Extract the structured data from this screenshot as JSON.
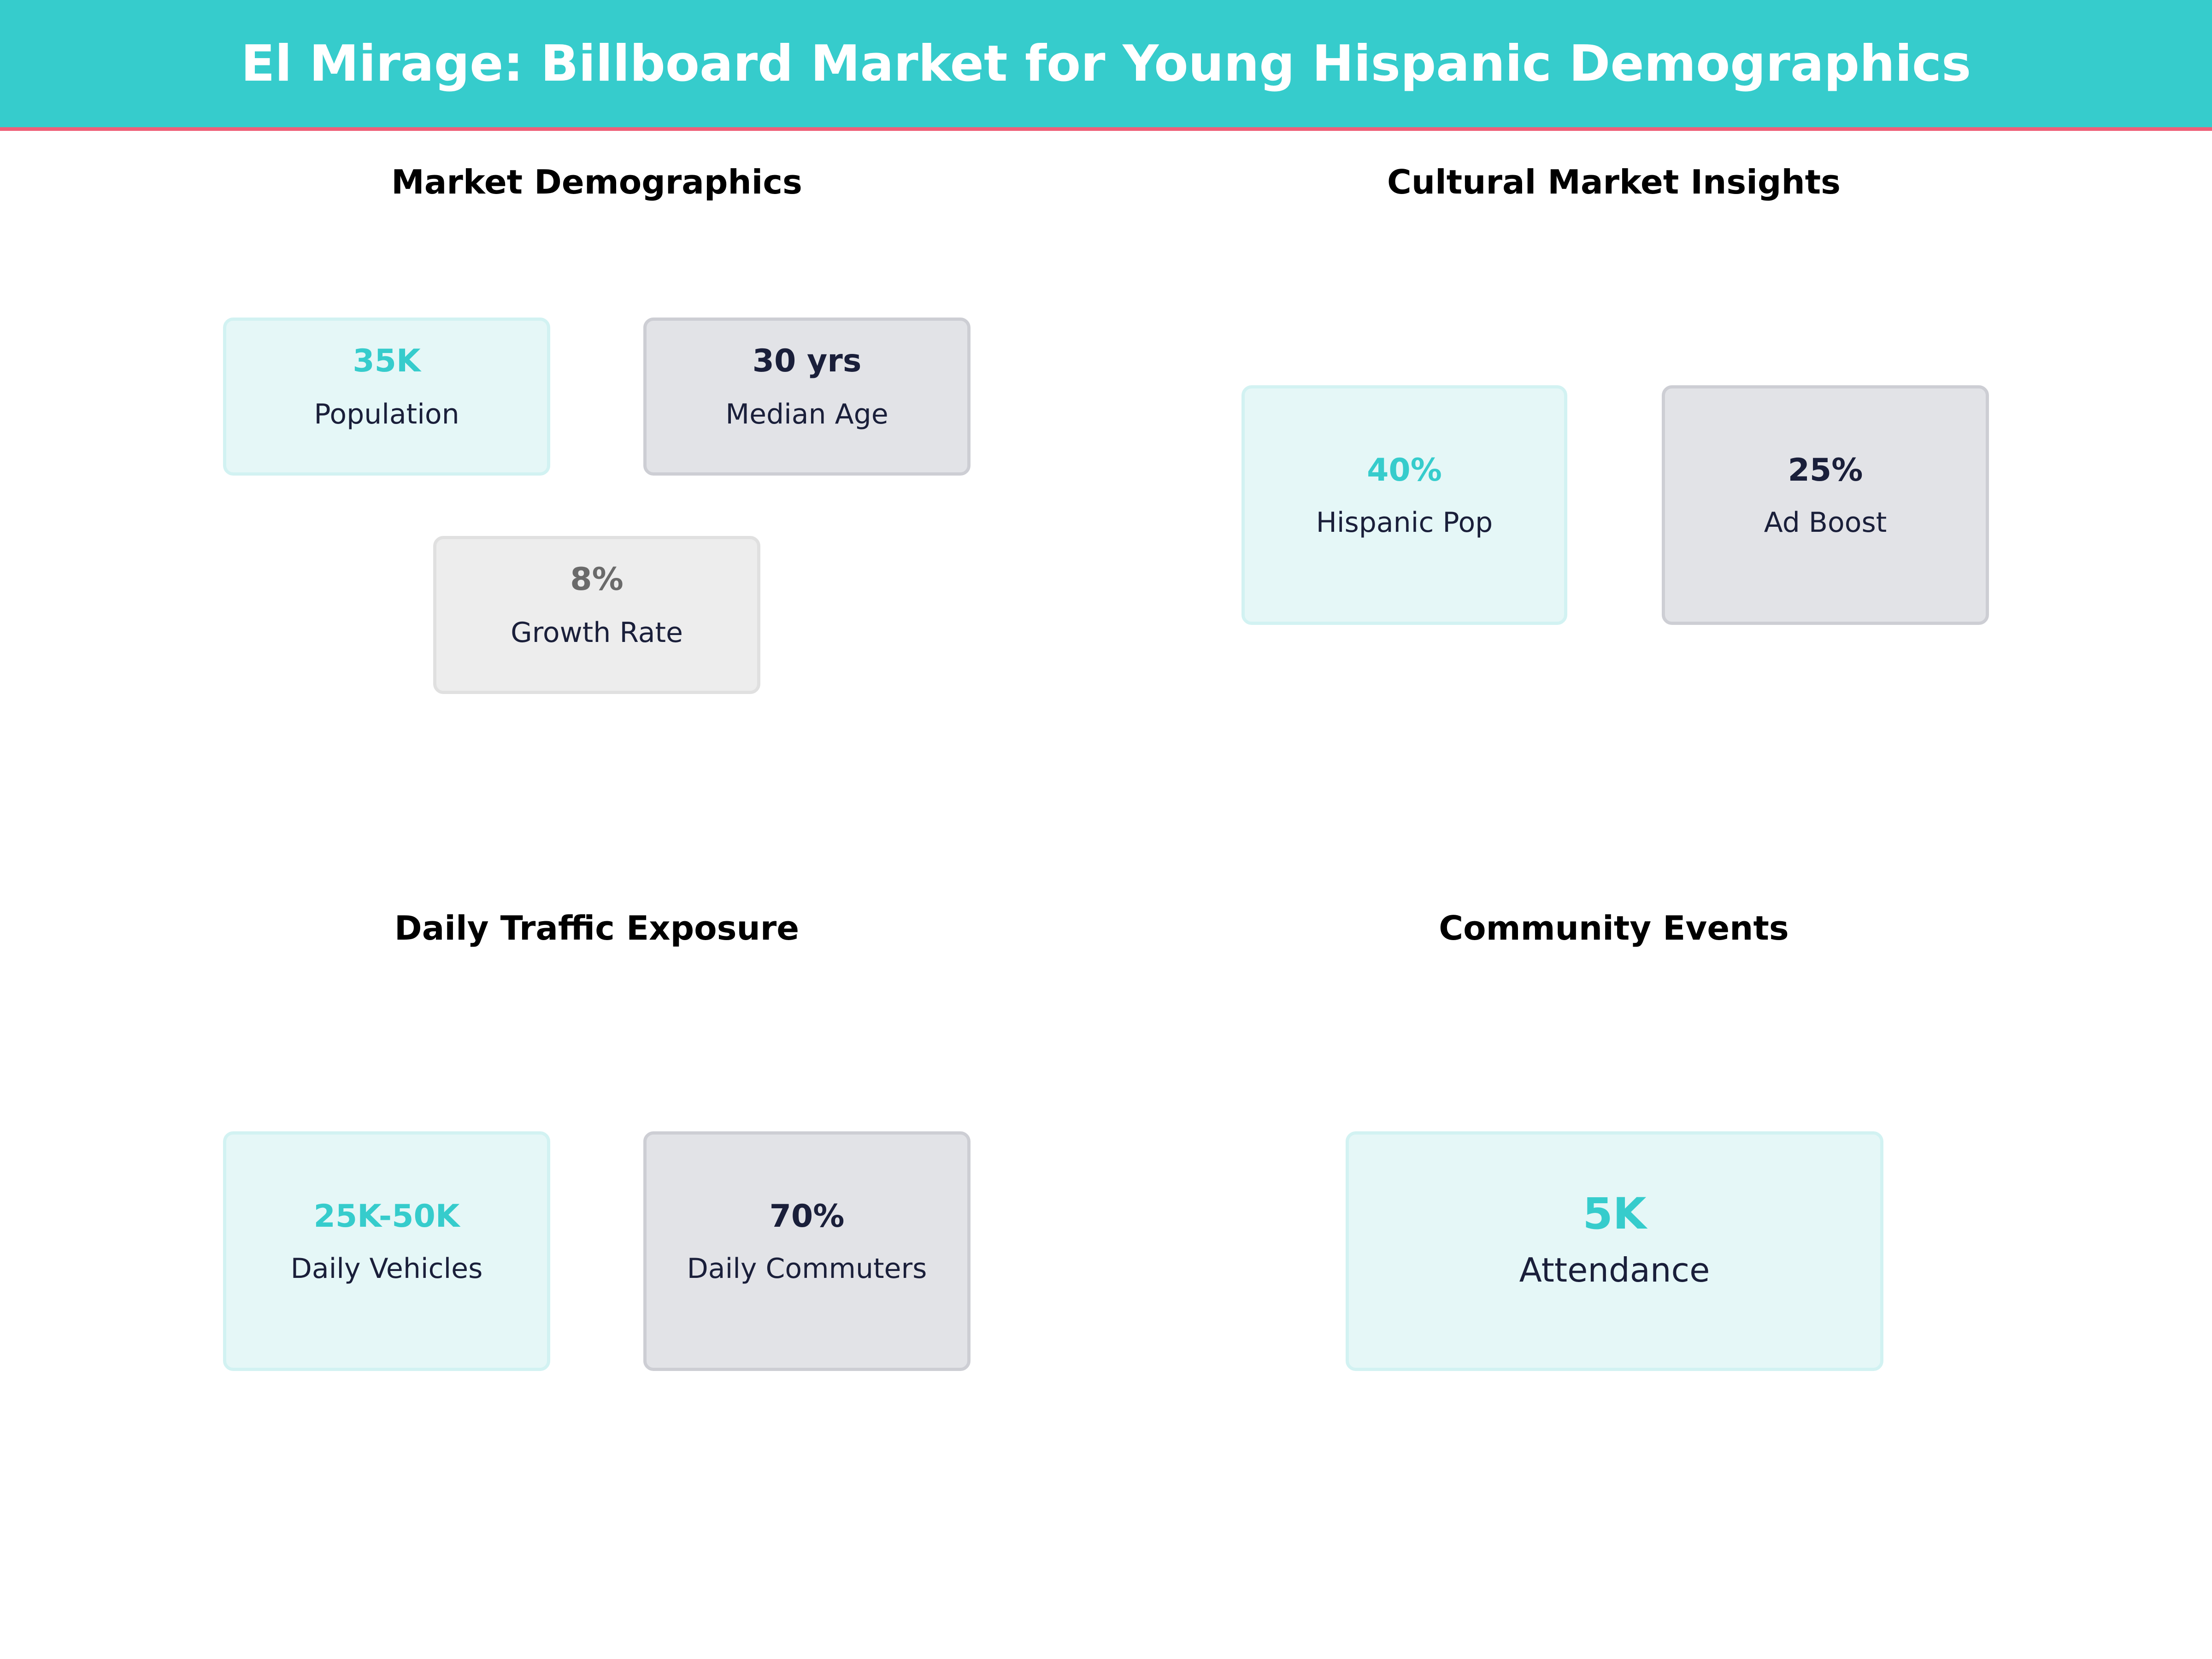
{
  "header": {
    "title": "El Mirage: Billboard Market for Young Hispanic Demographics"
  },
  "colors": {
    "accent": "#36CCCC",
    "header_border": "#EF5F78",
    "dark_text": "#1A1F3A"
  },
  "sections": [
    {
      "title": "Market Demographics",
      "cards": [
        {
          "value": "35K",
          "label": "Population"
        },
        {
          "value": "30 yrs",
          "label": "Median Age"
        },
        {
          "value": "8%",
          "label": "Growth Rate"
        }
      ]
    },
    {
      "title": "Cultural Market Insights",
      "cards": [
        {
          "value": "40%",
          "label": "Hispanic Pop"
        },
        {
          "value": "25%",
          "label": "Ad Boost"
        }
      ]
    },
    {
      "title": "Daily Traffic Exposure",
      "cards": [
        {
          "value": "25K-50K",
          "label": "Daily Vehicles"
        },
        {
          "value": "70%",
          "label": "Daily Commuters"
        }
      ]
    },
    {
      "title": "Community Events",
      "cards": [
        {
          "value": "5K",
          "label": "Attendance"
        }
      ]
    }
  ]
}
